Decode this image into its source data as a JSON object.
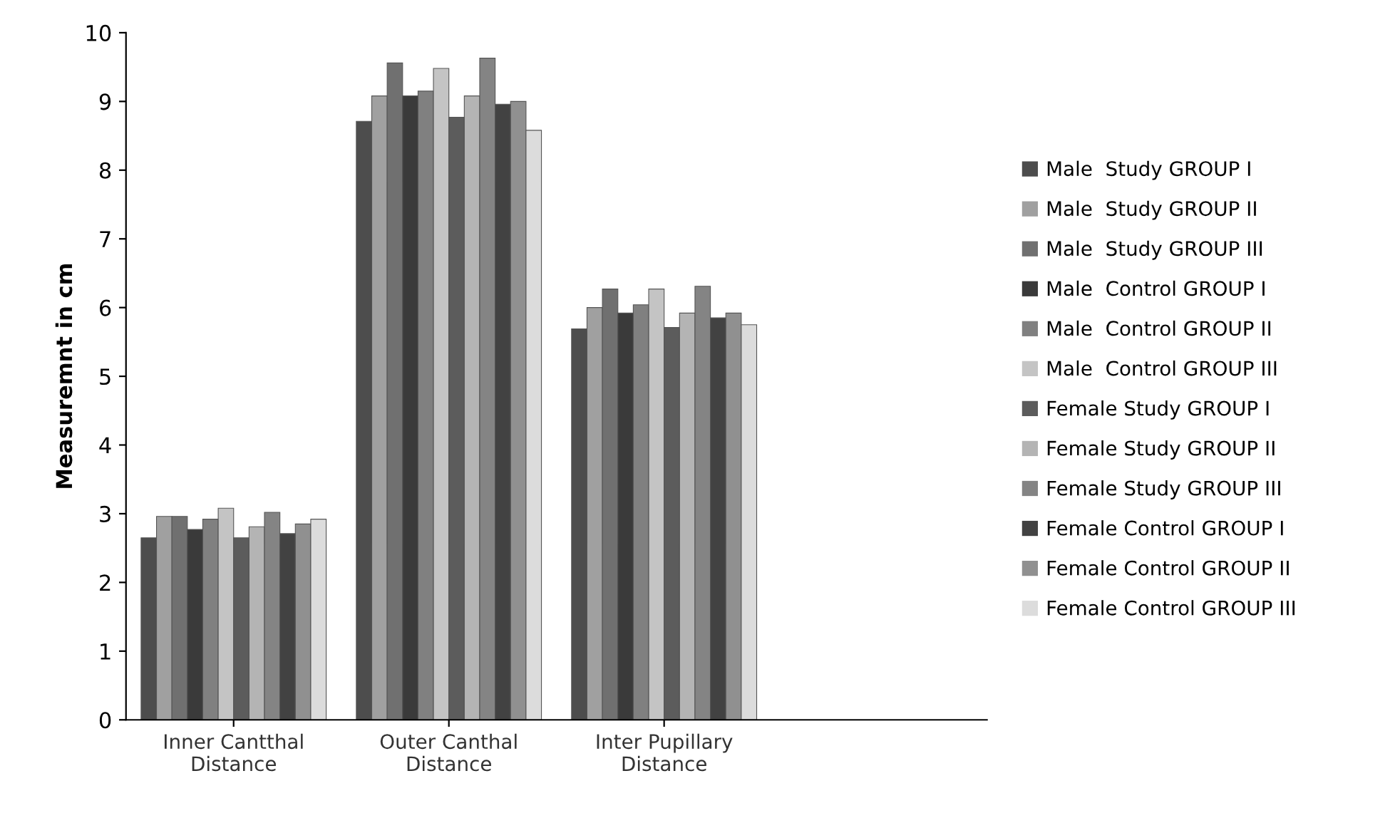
{
  "chart_data": {
    "type": "bar",
    "ylabel": "Measuremnt in cm",
    "categories": [
      "Inner Cantthal\nDistance",
      "Outer Canthal\nDistance",
      "Inter Pupillary\nDistance"
    ],
    "ylim": [
      0,
      10
    ],
    "yticks": [
      0,
      1,
      2,
      3,
      4,
      5,
      6,
      7,
      8,
      9,
      10
    ],
    "grid": false,
    "legend": "right",
    "series": [
      {
        "name": "Male  Study GROUP I",
        "color": "#4d4d4d",
        "values": [
          2.65,
          8.71,
          5.69
        ]
      },
      {
        "name": "Male  Study GROUP II",
        "color": "#a0a0a0",
        "values": [
          2.96,
          9.08,
          6.0
        ]
      },
      {
        "name": "Male  Study GROUP III",
        "color": "#707070",
        "values": [
          2.96,
          9.56,
          6.27
        ]
      },
      {
        "name": "Male  Control GROUP I",
        "color": "#3a3a3a",
        "values": [
          2.77,
          9.08,
          5.92
        ]
      },
      {
        "name": "Male  Control GROUP II",
        "color": "#808080",
        "values": [
          2.92,
          9.15,
          6.04
        ]
      },
      {
        "name": "Male  Control GROUP III",
        "color": "#c4c4c4",
        "values": [
          3.08,
          9.48,
          6.27
        ]
      },
      {
        "name": "Female Study GROUP I",
        "color": "#5c5c5c",
        "values": [
          2.65,
          8.77,
          5.71
        ]
      },
      {
        "name": "Female Study GROUP II",
        "color": "#b4b4b4",
        "values": [
          2.81,
          9.08,
          5.92
        ]
      },
      {
        "name": "Female Study GROUP III",
        "color": "#848484",
        "values": [
          3.02,
          9.63,
          6.31
        ]
      },
      {
        "name": "Female Control GROUP I",
        "color": "#424242",
        "values": [
          2.71,
          8.96,
          5.85
        ]
      },
      {
        "name": "Female Control GROUP II",
        "color": "#909090",
        "values": [
          2.85,
          9.0,
          5.92
        ]
      },
      {
        "name": "Female Control GROUP III",
        "color": "#dcdcdc",
        "values": [
          2.92,
          8.58,
          5.75
        ]
      }
    ]
  }
}
